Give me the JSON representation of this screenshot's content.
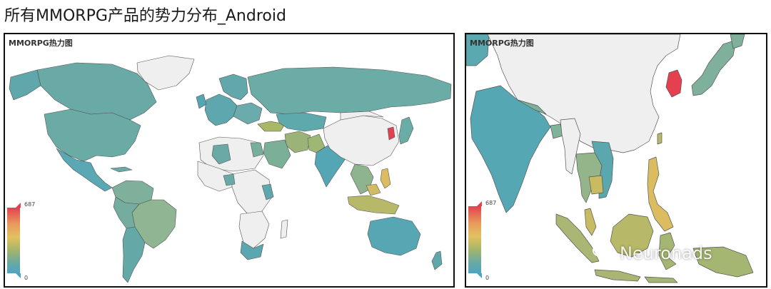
{
  "page_title": "所有MMORPG产品的势力分布_Android",
  "panels": [
    {
      "title": "MMORPG热力图",
      "legend": {
        "max": "687",
        "min": "0"
      }
    },
    {
      "title": "MMORPG热力图",
      "legend": {
        "max": "687",
        "min": "0"
      }
    }
  ],
  "watermark": "Neuronads",
  "colors": {
    "high": "#e4404f",
    "mid": "#e2c15f",
    "low": "#4fa3c3",
    "no_data": "#efefef",
    "border": "#555555"
  }
}
